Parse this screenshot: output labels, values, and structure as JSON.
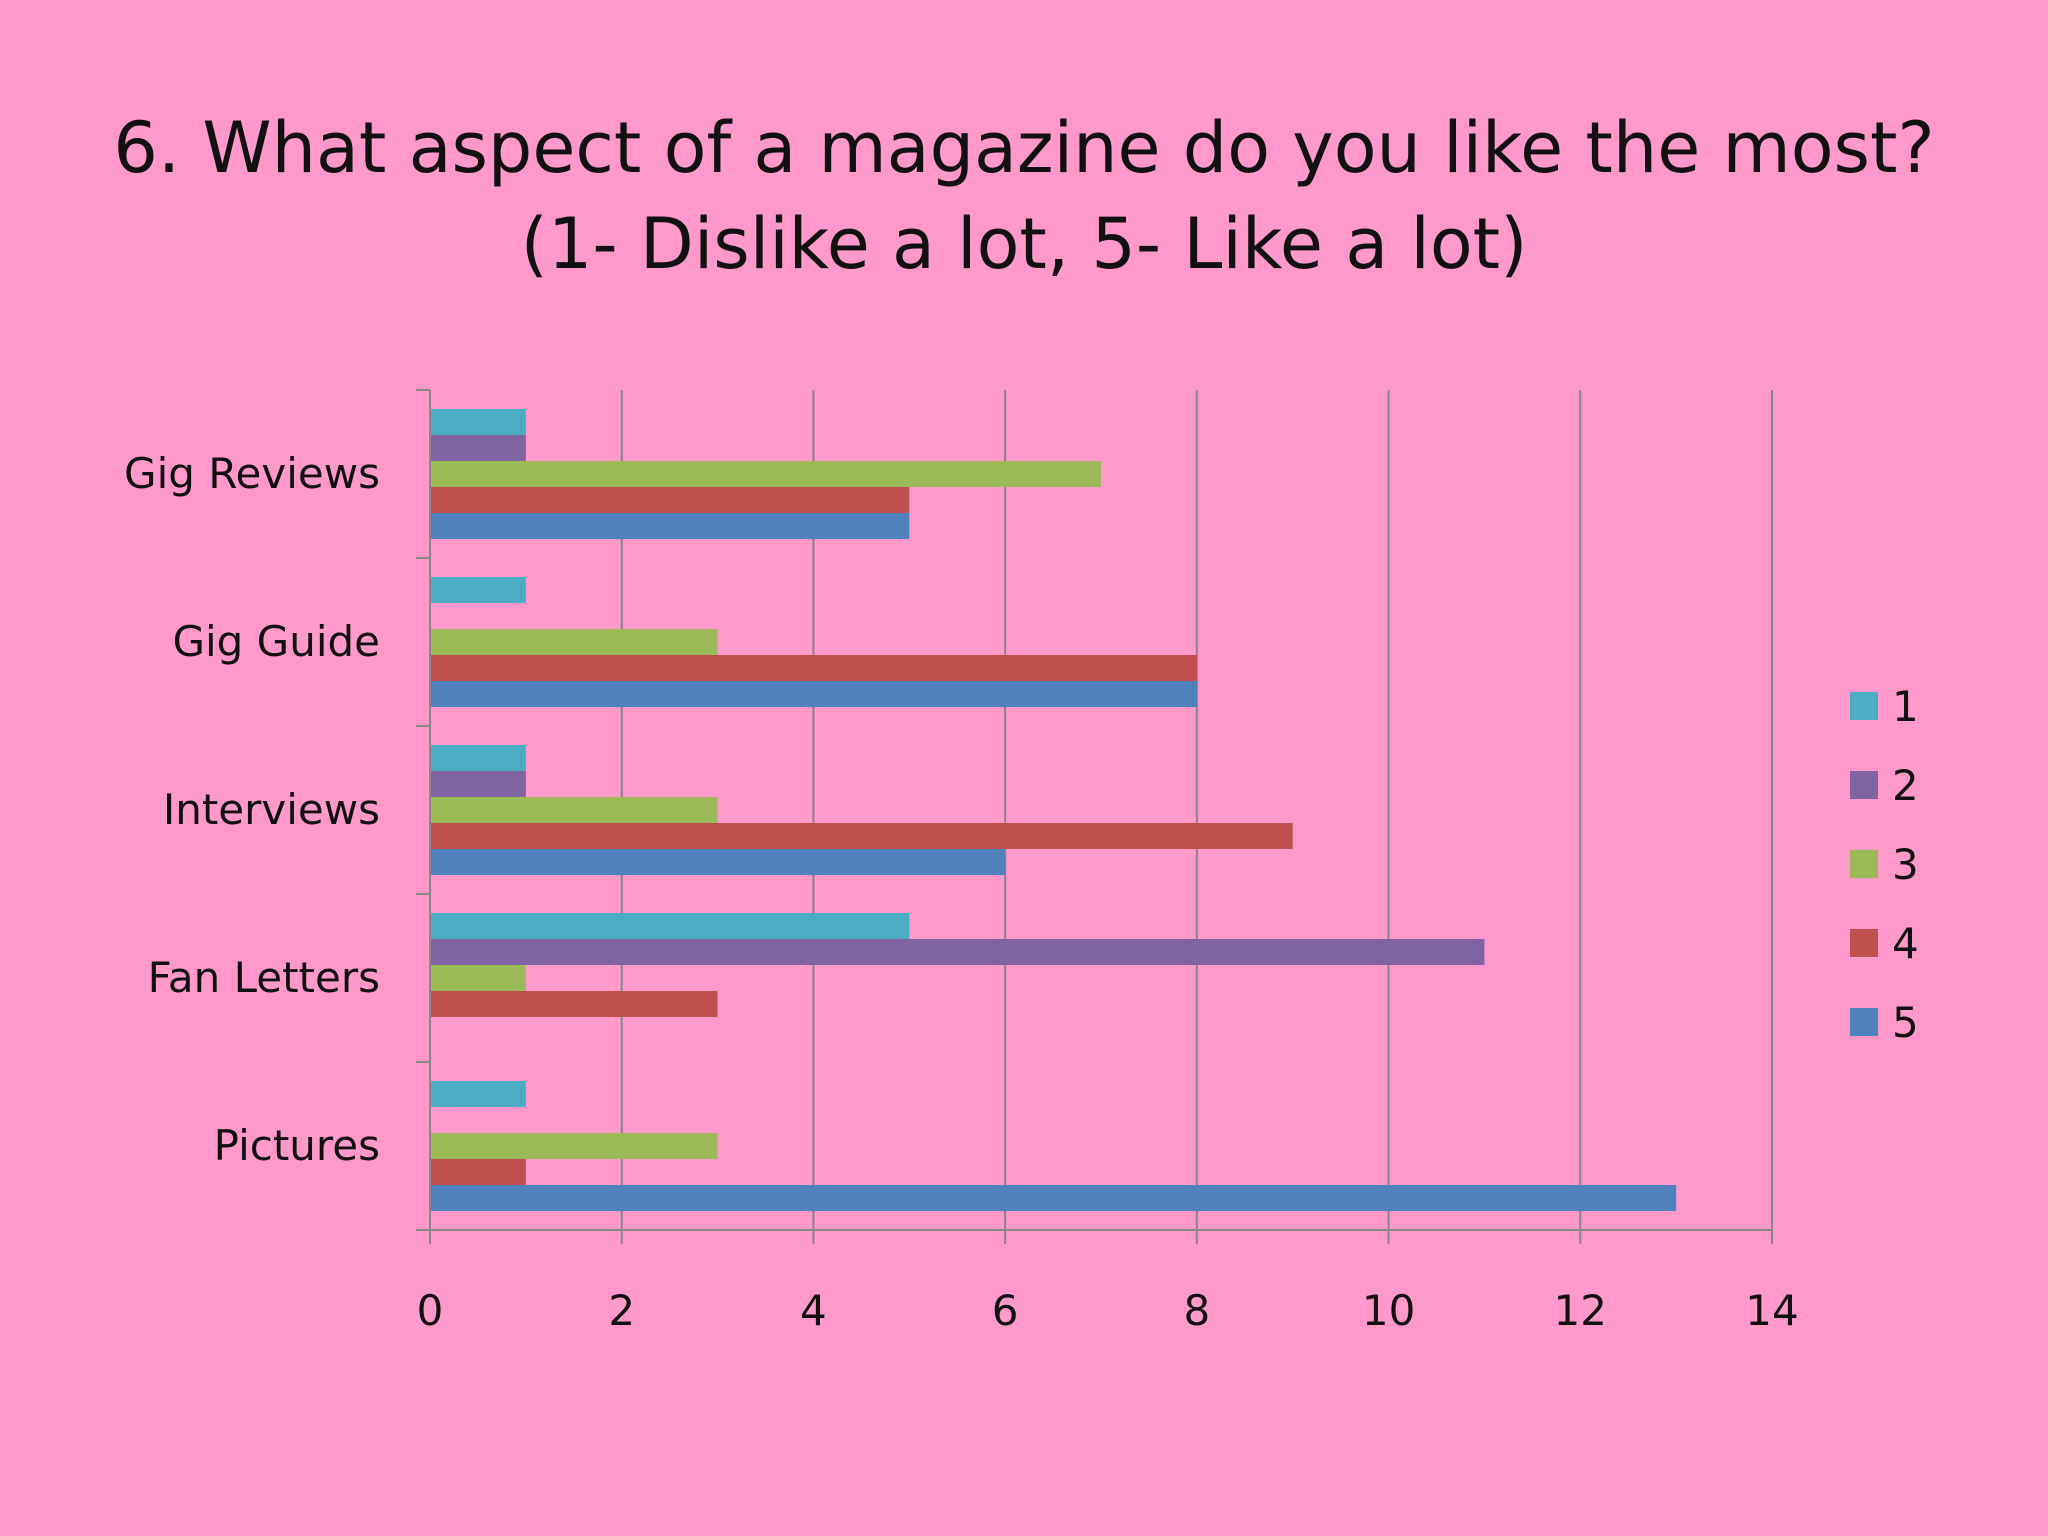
{
  "title_line1": "6. What aspect of a magazine do you like the most?",
  "title_line2": "(1- Dislike a lot, 5- Like a lot)",
  "chart_data": {
    "type": "bar",
    "orientation": "horizontal",
    "categories": [
      "Gig Reviews",
      "Gig Guide",
      "Interviews",
      "Fan Letters",
      "Pictures"
    ],
    "series": [
      {
        "name": "1",
        "color": "#4bacc6",
        "values": [
          1,
          1,
          1,
          5,
          1
        ]
      },
      {
        "name": "2",
        "color": "#8064a2",
        "values": [
          1,
          0,
          1,
          11,
          0
        ]
      },
      {
        "name": "3",
        "color": "#9bbb59",
        "values": [
          7,
          3,
          3,
          1,
          3
        ]
      },
      {
        "name": "4",
        "color": "#c0504d",
        "values": [
          5,
          8,
          9,
          3,
          1
        ]
      },
      {
        "name": "5",
        "color": "#4f81bd",
        "values": [
          5,
          8,
          6,
          0,
          13
        ]
      }
    ],
    "xlim": [
      0,
      14
    ],
    "xticks": [
      0,
      2,
      4,
      6,
      8,
      10,
      12,
      14
    ],
    "grid": "vertical",
    "legend": "right"
  }
}
